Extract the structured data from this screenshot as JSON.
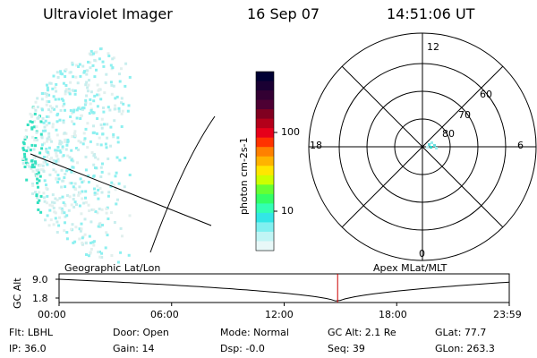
{
  "header": {
    "instrument": "Ultraviolet Imager",
    "date": "16 Sep 07",
    "time": "14:51:06 UT"
  },
  "colorbar": {
    "unit_label": "photon cm-2s-1",
    "ticks": [
      "100",
      "10"
    ],
    "colors": [
      "#000033",
      "#1a0033",
      "#330033",
      "#4d0033",
      "#800020",
      "#b3001a",
      "#e6001a",
      "#ff3300",
      "#ff8000",
      "#ffb300",
      "#ffe600",
      "#ccff00",
      "#66ff33",
      "#33ff66",
      "#33ffb3",
      "#33e6e6",
      "#80f0f0",
      "#c0f5f5",
      "#e8f8f8"
    ]
  },
  "polar_plot": {
    "mlt_labels": {
      "top": "12",
      "left": "18",
      "right": "6",
      "bottom": "0"
    },
    "lat_labels": [
      "60",
      "70",
      "80"
    ]
  },
  "panels": {
    "left_label": "Geographic Lat/Lon",
    "right_label": "Apex MLat/MLT"
  },
  "altitude_plot": {
    "ylabel": "GC Alt",
    "yticks": [
      "9.0",
      "1.8"
    ],
    "xticks": [
      "00:00",
      "06:00",
      "12:00",
      "18:00",
      "23:59"
    ],
    "current_time_hours": 14.85,
    "line_color": "#cc0000"
  },
  "info": {
    "filter": "Flt: LBHL",
    "ip": "IP: 36.0",
    "door": "Door: Open",
    "gain": "Gain: 14",
    "mode": "Mode: Normal",
    "dsp": "Dsp:  -0.0",
    "gc_alt": "GC Alt: 2.1 Re",
    "seq": "Seq: 39",
    "glat": "GLat:  77.7",
    "glon": "GLon: 263.3"
  }
}
